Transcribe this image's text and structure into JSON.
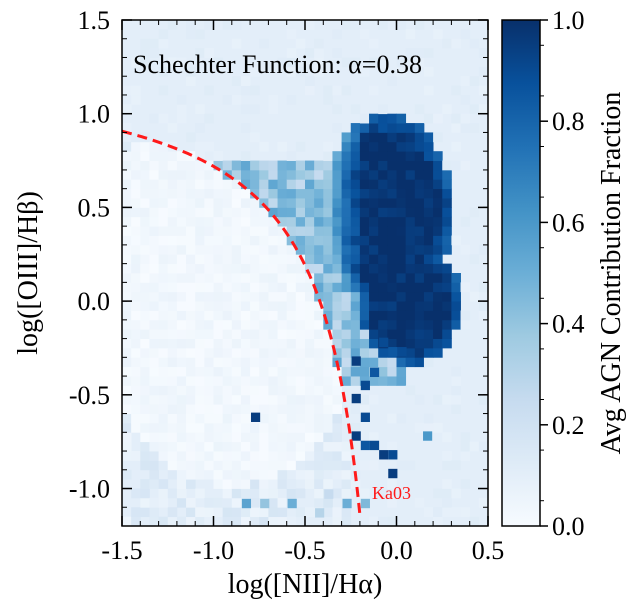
{
  "chart_data": {
    "type": "heatmap",
    "title": "Schechter Function: α=0.38",
    "xlabel": "log([NII]/Hα)",
    "ylabel": "log([OIII]/Hβ)",
    "colorbar_label": "Avg AGN Contribution Fraction",
    "xlim": [
      -1.5,
      0.5
    ],
    "ylim": [
      -1.2,
      1.5
    ],
    "clim": [
      0.0,
      1.0
    ],
    "colormap": "Blues",
    "x_ticks": [
      -1.5,
      -1.0,
      -0.5,
      0.0,
      0.5
    ],
    "x_tick_labels": [
      "-1.5",
      "-1.0",
      "-0.5",
      "0.0",
      "0.5"
    ],
    "y_ticks": [
      -1.0,
      -0.5,
      0.0,
      0.5,
      1.0,
      1.5
    ],
    "y_tick_labels": [
      "-1.0",
      "-0.5",
      "0.0",
      "0.5",
      "1.0",
      "1.5"
    ],
    "cbar_ticks": [
      0.0,
      0.2,
      0.4,
      0.6,
      0.8,
      1.0
    ],
    "cbar_tick_labels": [
      "0.0",
      "0.2",
      "0.4",
      "0.6",
      "0.8",
      "1.0"
    ],
    "bin_size": 0.05,
    "background_value": 0.1,
    "agn_region": {
      "description": "Dense AGN-dominated clump (fraction ~1) to the right of the Kauffmann line, roughly x in [-0.45, 0.3], y in [-0.5, 1.05]",
      "center_x": -0.05,
      "center_y": 0.45,
      "fraction": 0.98
    },
    "low_region": {
      "description": "Star-forming branch with AGN fraction near 0 left/below the Kauffmann line",
      "fraction": 0.02
    },
    "isolated_bins": [
      {
        "x": -0.22,
        "y": -0.32,
        "value": 0.95
      },
      {
        "x": -0.17,
        "y": -0.45,
        "value": 0.9
      },
      {
        "x": -0.12,
        "y": -0.38,
        "value": 0.85
      },
      {
        "x": -0.22,
        "y": -0.52,
        "value": 0.95
      },
      {
        "x": -0.17,
        "y": -0.62,
        "value": 0.9
      },
      {
        "x": -0.22,
        "y": -0.72,
        "value": 0.95
      },
      {
        "x": -0.17,
        "y": -0.77,
        "value": 0.85
      },
      {
        "x": -0.12,
        "y": -0.77,
        "value": 0.9
      },
      {
        "x": -0.07,
        "y": -0.82,
        "value": 0.95
      },
      {
        "x": -0.02,
        "y": -0.82,
        "value": 0.9
      },
      {
        "x": 0.17,
        "y": -0.72,
        "value": 0.6
      },
      {
        "x": -0.02,
        "y": -0.92,
        "value": 0.95
      },
      {
        "x": -0.07,
        "y": -0.22,
        "value": 0.9
      },
      {
        "x": -0.02,
        "y": -0.27,
        "value": 0.85
      },
      {
        "x": 0.03,
        "y": -0.27,
        "value": 0.9
      },
      {
        "x": -0.77,
        "y": -0.62,
        "value": 0.95
      },
      {
        "x": -0.82,
        "y": -1.08,
        "value": 0.55
      },
      {
        "x": -0.72,
        "y": -1.08,
        "value": 0.4
      },
      {
        "x": -0.57,
        "y": -1.08,
        "value": 0.5
      },
      {
        "x": -0.42,
        "y": -1.13,
        "value": 0.3
      },
      {
        "x": -0.37,
        "y": -1.03,
        "value": 0.25
      },
      {
        "x": -0.27,
        "y": -1.08,
        "value": 0.5
      },
      {
        "x": -0.17,
        "y": -1.08,
        "value": 0.45
      }
    ],
    "kauffmann_line": {
      "label": "Ka03",
      "equation": "y = 0.61 / (x - 0.05) + 1.3",
      "x_range": [
        -1.5,
        -0.2
      ],
      "color": "#ff1a1a",
      "style": "dashed"
    },
    "colors": {
      "cmap_low": "#f7fbff",
      "cmap_high": "#08306b",
      "line": "#ff1a1a",
      "annotation": "#ff1a1a"
    }
  }
}
